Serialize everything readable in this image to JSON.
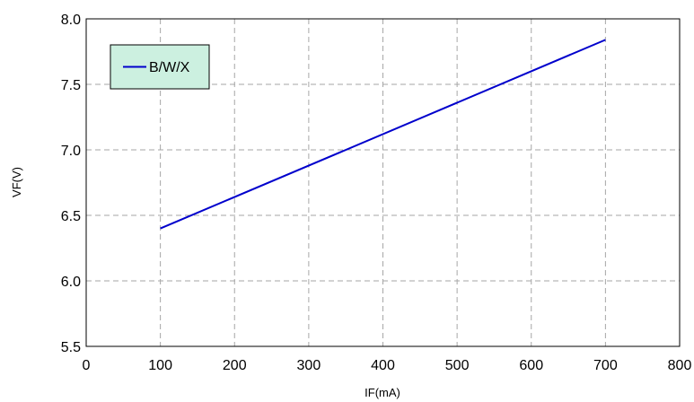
{
  "chart_data": {
    "type": "line",
    "title": "",
    "xlabel": "IF(mA)",
    "ylabel": "VF(V)",
    "xlim": [
      0,
      800
    ],
    "ylim": [
      5.5,
      8.0
    ],
    "x_ticks": [
      "0",
      "100",
      "200",
      "300",
      "400",
      "500",
      "600",
      "700",
      "800"
    ],
    "y_ticks": [
      "5.5",
      "6.0",
      "6.5",
      "7.0",
      "7.5",
      "8.0"
    ],
    "grid": true,
    "legend_position": "top-left",
    "legend_background": "#ccf0e0",
    "series": [
      {
        "name": "B/W/X",
        "color": "#0000cc",
        "x": [
          100,
          700
        ],
        "y": [
          6.4,
          7.84
        ]
      }
    ]
  }
}
